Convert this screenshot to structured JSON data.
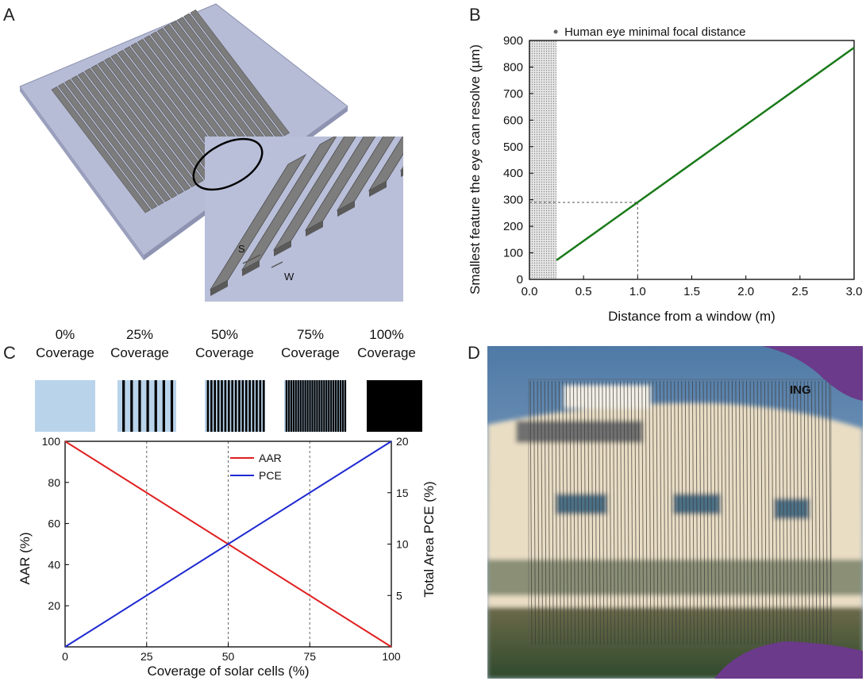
{
  "panels": {
    "a": "A",
    "b": "B",
    "c": "C",
    "d": "D"
  },
  "panel_a": {
    "spacing_label": "S",
    "width_label": "W"
  },
  "panel_c": {
    "coverage_labels": [
      {
        "pct": "0%",
        "word": "Coverage"
      },
      {
        "pct": "25%",
        "word": "Coverage"
      },
      {
        "pct": "50%",
        "word": "Coverage"
      },
      {
        "pct": "75%",
        "word": "Coverage"
      },
      {
        "pct": "100%",
        "word": "Coverage"
      }
    ],
    "swatch_colors": {
      "light": "#b9d3ea",
      "dark": "#000000"
    }
  },
  "panel_d": {
    "logo_text": "ING"
  },
  "chart_data": [
    {
      "type": "line",
      "ylabel": "Smallest feature the eye can resolve (µm)",
      "xlabel": "Distance from a window (m)",
      "xlim": [
        0.0,
        3.0
      ],
      "ylim": [
        0,
        900
      ],
      "x_ticks": [
        "0.0",
        "0.5",
        "1.0",
        "1.5",
        "2.0",
        "2.5",
        "3.0"
      ],
      "y_ticks": [
        "0",
        "100",
        "200",
        "300",
        "400",
        "500",
        "600",
        "700",
        "800",
        "900"
      ],
      "series": [
        {
          "x": [
            0.25,
            3.0
          ],
          "y": [
            72,
            873
          ],
          "color": "#1a7a1a"
        }
      ],
      "shaded_region": {
        "x": [
          0,
          0.25
        ],
        "label": "Human eye minimal focal distance"
      },
      "guide_point": {
        "x": 1.0,
        "y": 290
      }
    },
    {
      "type": "line",
      "xlabel": "Coverage of solar cells (%)",
      "ylabel": "AAR (%)",
      "ylabel_right": "Total Area PCE (%)",
      "xlim": [
        0,
        100
      ],
      "ylim": [
        0,
        100
      ],
      "ylim_right": [
        0,
        20
      ],
      "x_ticks": [
        "0",
        "25",
        "50",
        "75",
        "100"
      ],
      "y_ticks": [
        "20",
        "40",
        "60",
        "80",
        "100"
      ],
      "y_ticks_right": [
        "5",
        "10",
        "15",
        "20"
      ],
      "gridlines_x": [
        25,
        50,
        75
      ],
      "legend_position": "top-center",
      "series": [
        {
          "name": "AAR",
          "x": [
            0,
            100
          ],
          "y": [
            100,
            0
          ],
          "color": "#e02020",
          "axis": "left"
        },
        {
          "name": "PCE",
          "x": [
            0,
            100
          ],
          "y": [
            0,
            20
          ],
          "color": "#1f2ad0",
          "axis": "right"
        }
      ]
    }
  ]
}
